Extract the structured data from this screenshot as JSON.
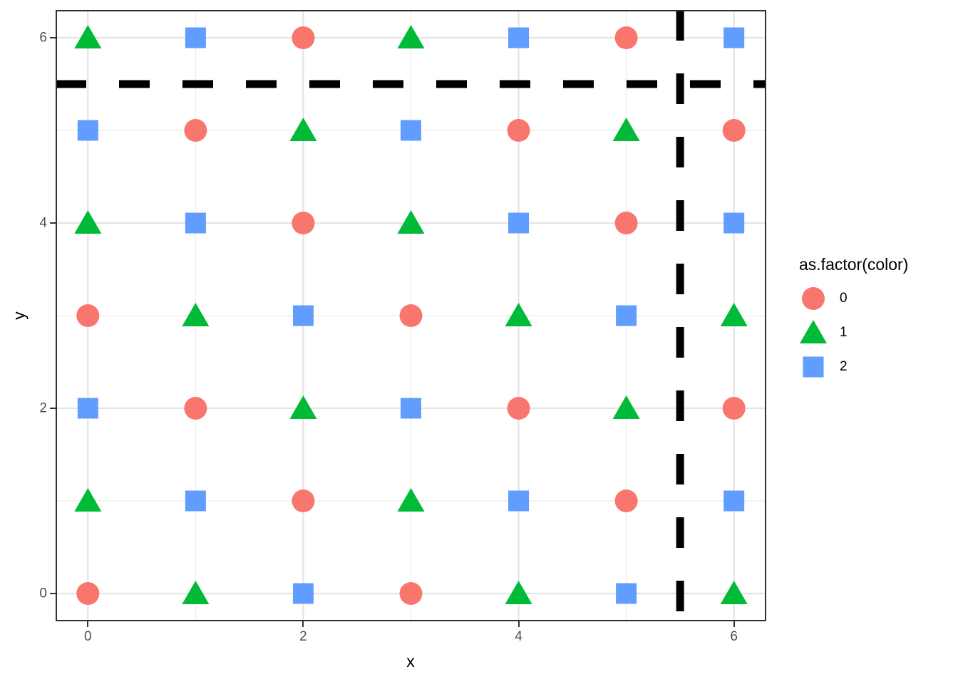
{
  "chart_data": {
    "type": "scatter",
    "title": "",
    "xlabel": "x",
    "ylabel": "y",
    "xlim": [
      -0.3,
      6.3
    ],
    "ylim": [
      -0.3,
      6.3
    ],
    "x_ticks": [
      0,
      2,
      4,
      6
    ],
    "y_ticks": [
      0,
      2,
      4,
      6
    ],
    "x_minor_gridlines": [
      1,
      3,
      5
    ],
    "y_minor_gridlines": [
      1,
      3,
      5
    ],
    "grid": "on",
    "legend_position": "right",
    "panel_style": {
      "background": "#ffffff",
      "border_color": "#2f2f2f",
      "grid_major_color": "#e4e4e4",
      "grid_minor_color": "#ededed"
    },
    "reference_lines": [
      {
        "orientation": "horizontal",
        "value": 5.5,
        "style": "dashed",
        "color": "#000000"
      },
      {
        "orientation": "vertical",
        "value": 5.5,
        "style": "dashed",
        "color": "#000000"
      }
    ],
    "series": [
      {
        "name": "0",
        "shape": "circle",
        "color": "#F8766D",
        "points": [
          [
            0,
            0
          ],
          [
            3,
            0
          ],
          [
            2,
            1
          ],
          [
            5,
            1
          ],
          [
            1,
            2
          ],
          [
            4,
            2
          ],
          [
            6,
            2
          ],
          [
            0,
            3
          ],
          [
            3,
            3
          ],
          [
            2,
            4
          ],
          [
            5,
            4
          ],
          [
            1,
            5
          ],
          [
            4,
            5
          ],
          [
            6,
            5
          ],
          [
            2,
            6
          ],
          [
            5,
            6
          ]
        ]
      },
      {
        "name": "1",
        "shape": "triangle",
        "color": "#00BA38",
        "points": [
          [
            1,
            0
          ],
          [
            4,
            0
          ],
          [
            6,
            0
          ],
          [
            0,
            1
          ],
          [
            3,
            1
          ],
          [
            2,
            2
          ],
          [
            5,
            2
          ],
          [
            1,
            3
          ],
          [
            4,
            3
          ],
          [
            6,
            3
          ],
          [
            0,
            4
          ],
          [
            3,
            4
          ],
          [
            2,
            5
          ],
          [
            5,
            5
          ],
          [
            0,
            6
          ],
          [
            3,
            6
          ]
        ]
      },
      {
        "name": "2",
        "shape": "square",
        "color": "#619CFF",
        "points": [
          [
            2,
            0
          ],
          [
            5,
            0
          ],
          [
            1,
            1
          ],
          [
            4,
            1
          ],
          [
            6,
            1
          ],
          [
            0,
            2
          ],
          [
            3,
            2
          ],
          [
            2,
            3
          ],
          [
            5,
            3
          ],
          [
            1,
            4
          ],
          [
            4,
            4
          ],
          [
            6,
            4
          ],
          [
            0,
            5
          ],
          [
            3,
            5
          ],
          [
            1,
            6
          ],
          [
            4,
            6
          ],
          [
            6,
            6
          ]
        ]
      }
    ],
    "legend": {
      "title": "as.factor(color)",
      "entries": [
        {
          "label": "0",
          "shape": "circle",
          "color": "#F8766D"
        },
        {
          "label": "1",
          "shape": "triangle",
          "color": "#00BA38"
        },
        {
          "label": "2",
          "shape": "square",
          "color": "#619CFF"
        }
      ]
    }
  }
}
